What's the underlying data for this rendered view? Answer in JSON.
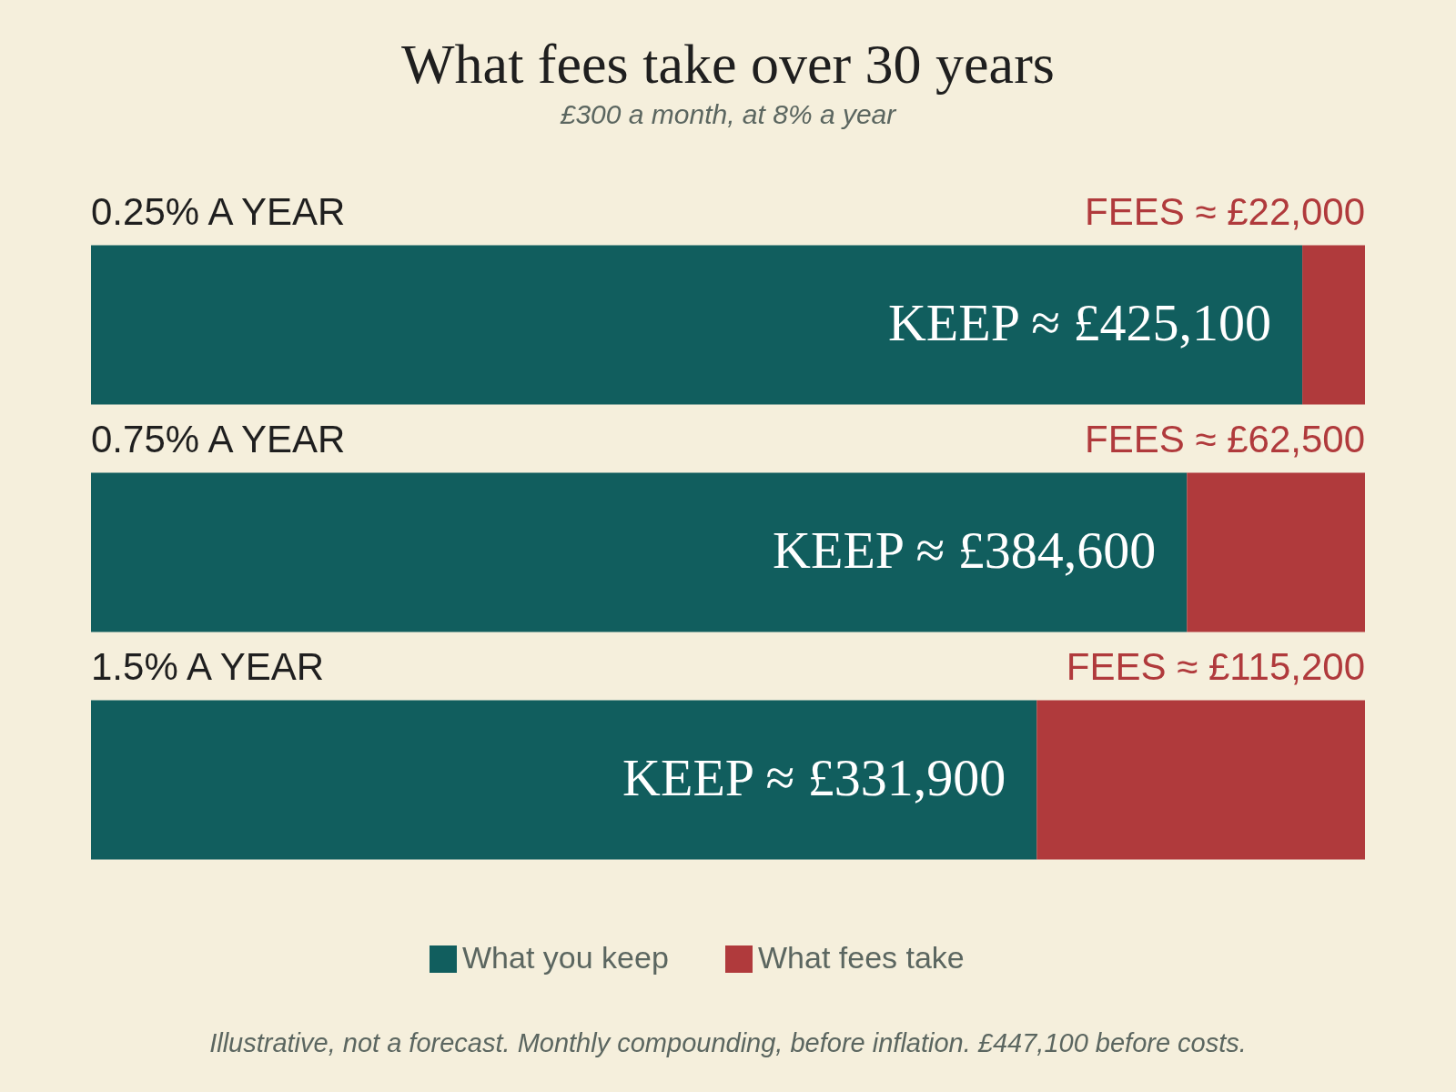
{
  "chart_data": {
    "type": "bar",
    "orientation": "horizontal",
    "stacked": true,
    "title": "What fees take over 30 years",
    "subtitle": "£300 a month, at 8% a year",
    "categories": [
      "0.25% A YEAR",
      "0.75% A YEAR",
      "1.5% A YEAR"
    ],
    "series": [
      {
        "name": "What you keep",
        "color": "#115e5e",
        "values": [
          425100,
          384600,
          331900
        ],
        "value_labels": [
          "KEEP ≈ £425,100",
          "KEEP ≈ £384,600",
          "KEEP ≈ £331,900"
        ]
      },
      {
        "name": "What fees take",
        "color": "#b03a3c",
        "values": [
          22000,
          62500,
          115200
        ],
        "value_labels": [
          "FEES ≈ £22,000",
          "FEES ≈ £62,500",
          "FEES ≈ £115,200"
        ]
      }
    ],
    "legend": "bottom",
    "annotations": [
      "Illustrative, not a forecast. Monthly compounding, before inflation. £447,100 before costs."
    ]
  }
}
